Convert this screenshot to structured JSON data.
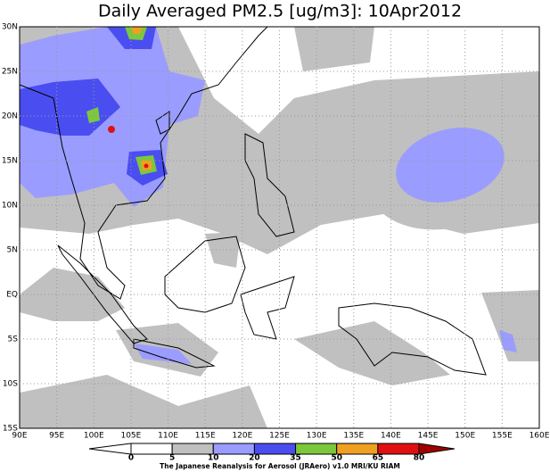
{
  "title": "Daily Averaged PM2.5 [ug/m3]: 10Apr2012",
  "lon_labels": [
    "90E",
    "95E",
    "100E",
    "105E",
    "110E",
    "115E",
    "120E",
    "125E",
    "130E",
    "135E",
    "140E",
    "145E",
    "150E",
    "155E",
    "160E"
  ],
  "lat_labels": [
    "30N",
    "25N",
    "20N",
    "15N",
    "10N",
    "5N",
    "EQ",
    "5S",
    "10S",
    "15S"
  ],
  "colorbar": {
    "levels": [
      0,
      5,
      10,
      20,
      35,
      50,
      65,
      80
    ],
    "colors": [
      "#ffffff",
      "#ffffff",
      "#c0c0c0",
      "#9a9cff",
      "#4a4ef0",
      "#7cc83c",
      "#f0a020",
      "#e01010",
      "#a00000"
    ]
  },
  "credit": "The Japanese Reanalysis for Aerosol (JRAero) v1.0 MRI/KU RIAM"
}
